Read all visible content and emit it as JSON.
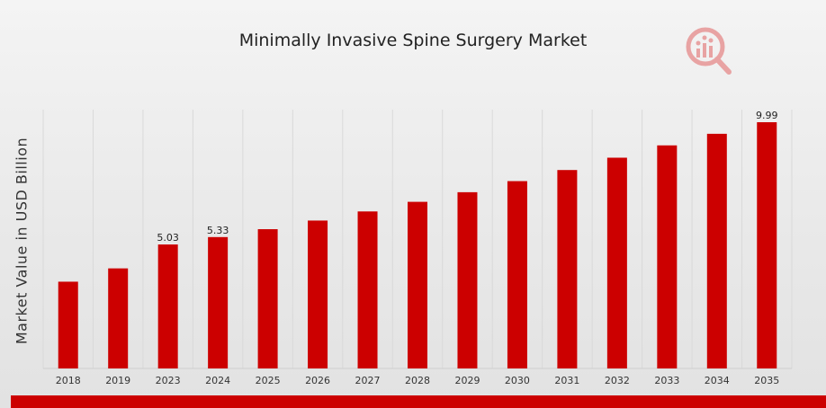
{
  "colors": {
    "bar": "#cc0000",
    "grid": "#d9d9d9",
    "brand": "#cc0000"
  },
  "logo_icon": "market-research-logo-icon",
  "chart_data": {
    "type": "bar",
    "title": "Minimally Invasive Spine Surgery Market",
    "xlabel": "",
    "ylabel": "Market Value in USD Billion",
    "categories": [
      "2018",
      "2019",
      "2023",
      "2024",
      "2025",
      "2026",
      "2027",
      "2028",
      "2029",
      "2030",
      "2031",
      "2032",
      "2033",
      "2034",
      "2035"
    ],
    "values": [
      3.52,
      4.06,
      5.03,
      5.33,
      5.65,
      6.0,
      6.37,
      6.76,
      7.15,
      7.6,
      8.05,
      8.55,
      9.05,
      9.52,
      9.99
    ],
    "data_labels": {
      "2": "5.03",
      "3": "5.33",
      "14": "9.99"
    },
    "ylim": [
      0,
      10.5
    ],
    "grid": "vertical",
    "legend": "none"
  }
}
